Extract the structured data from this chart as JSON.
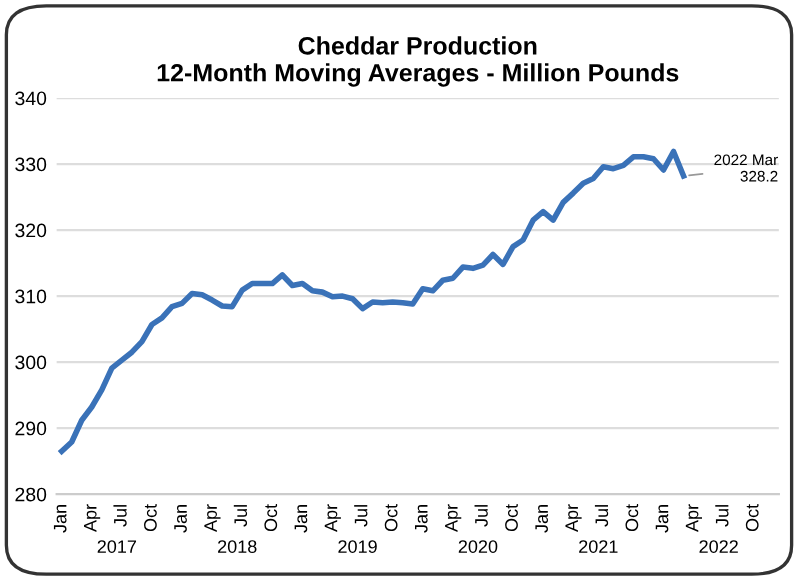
{
  "chart_data": {
    "type": "line",
    "title": "Cheddar Production",
    "subtitle": "12-Month Moving Averages - Million Pounds",
    "categories": [
      "Jan",
      null,
      null,
      "Apr",
      null,
      null,
      "Jul",
      null,
      null,
      "Oct",
      null,
      null,
      "Jan",
      null,
      null,
      "Apr",
      null,
      null,
      "Jul",
      null,
      null,
      "Oct",
      null,
      null,
      "Jan",
      null,
      null,
      "Apr",
      null,
      null,
      "Jul",
      null,
      null,
      "Oct",
      null,
      null,
      "Jan",
      null,
      null,
      "Apr",
      null,
      null,
      "Jul",
      null,
      null,
      "Oct",
      null,
      null,
      "Jan",
      null,
      null,
      "Apr",
      null,
      null,
      "Jul",
      null,
      null,
      "Oct",
      null,
      null,
      "Jan",
      null,
      null,
      "Apr",
      null,
      null,
      "Jul",
      null,
      null,
      "Oct",
      null,
      null
    ],
    "series": [
      {
        "color": "#3a72b8",
        "values": [
          286.5,
          287.9,
          291.2,
          293.2,
          295.8,
          299.1,
          300.3,
          301.5,
          303.1,
          305.7,
          306.7,
          308.4,
          308.9,
          310.4,
          310.2,
          309.4,
          308.5,
          308.4,
          310.9,
          311.9,
          311.9,
          311.9,
          313.2,
          311.6,
          311.9,
          310.8,
          310.6,
          309.9,
          310.0,
          309.6,
          308.1,
          309.1,
          309.0,
          309.1,
          309.0,
          308.8,
          311.1,
          310.8,
          312.4,
          312.7,
          314.4,
          314.2,
          314.7,
          316.3,
          314.8,
          317.5,
          318.5,
          321.5,
          322.8,
          321.5,
          324.2,
          325.6,
          327.1,
          327.8,
          329.6,
          329.3,
          329.8,
          331.1,
          331.1,
          330.8,
          329.1,
          331.9,
          328.2,
          null,
          null,
          null,
          null,
          null,
          null,
          null,
          null,
          null
        ]
      }
    ],
    "ylim": [
      280,
      340
    ],
    "yticks": [
      280,
      290,
      300,
      310,
      320,
      330,
      340
    ],
    "grid": "y",
    "legend": false,
    "annotations": [
      "2022 Mar\n328.2",
      "2017",
      "2018",
      "2019",
      "2020",
      "2021",
      "2022"
    ]
  }
}
